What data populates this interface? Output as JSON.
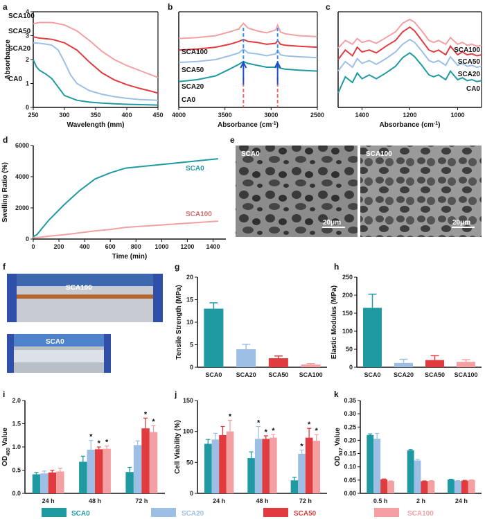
{
  "colors": {
    "CA0": "#1f9aa3",
    "SCA0": "#1f9aa3",
    "SCA20": "#9dbfe6",
    "SCA50": "#e03b3f",
    "SCA100": "#f4a0a3",
    "black": "#111111"
  },
  "legend": {
    "items": [
      "SCA0",
      "SCA20",
      "SCA50",
      "SCA100"
    ]
  },
  "chart_data": [
    {
      "id": "a",
      "panel": "a",
      "type": "line",
      "xlabel": "Wavelength (mm)",
      "ylabel": "Absorbance",
      "xlim": [
        250,
        450
      ],
      "ylim": [
        0,
        4
      ],
      "xticks": [
        250,
        300,
        350,
        400,
        450
      ],
      "yticks": [
        0,
        1,
        2,
        3,
        4
      ],
      "series": [
        {
          "name": "SCA100",
          "color": "#f4a0a3",
          "x": [
            250,
            260,
            270,
            280,
            300,
            320,
            340,
            360,
            380,
            400,
            420,
            440,
            450
          ],
          "y": [
            3.5,
            3.55,
            3.55,
            3.55,
            3.45,
            3.2,
            2.8,
            2.35,
            2.0,
            1.75,
            1.55,
            1.35,
            1.25
          ]
        },
        {
          "name": "SCA50",
          "color": "#e03b3f",
          "x": [
            250,
            260,
            280,
            300,
            320,
            340,
            360,
            380,
            400,
            420,
            440,
            450
          ],
          "y": [
            2.95,
            2.9,
            2.85,
            2.7,
            2.4,
            1.9,
            1.45,
            1.15,
            0.95,
            0.8,
            0.67,
            0.6
          ]
        },
        {
          "name": "SCA20",
          "color": "#9dbfe6",
          "x": [
            250,
            260,
            270,
            280,
            290,
            300,
            310,
            320,
            340,
            360,
            380,
            400,
            420,
            450
          ],
          "y": [
            2.7,
            2.68,
            2.65,
            2.6,
            2.4,
            1.9,
            1.35,
            1.0,
            0.7,
            0.55,
            0.45,
            0.38,
            0.33,
            0.3
          ]
        },
        {
          "name": "CA0",
          "color": "#1f9aa3",
          "x": [
            250,
            255,
            260,
            270,
            280,
            290,
            300,
            320,
            340,
            360,
            380,
            400,
            450
          ],
          "y": [
            2.0,
            1.7,
            1.55,
            1.4,
            1.2,
            0.85,
            0.5,
            0.3,
            0.22,
            0.18,
            0.15,
            0.13,
            0.1
          ]
        }
      ]
    },
    {
      "id": "b",
      "panel": "b",
      "type": "line",
      "xlabel": "Absorbance (cm",
      "xlabel_sup": "-1",
      "xlabel_tail": ")",
      "xlim": [
        4000,
        2500
      ],
      "ylim": [
        0,
        10
      ],
      "xticks": [
        4000,
        3500,
        3000,
        2500
      ],
      "series": [
        {
          "name": "SCA100",
          "color": "#f4a0a3",
          "x": [
            4000,
            3800,
            3600,
            3450,
            3350,
            3300,
            3250,
            3150,
            3050,
            2950,
            2930,
            2900,
            2850,
            2700,
            2500
          ],
          "y": [
            7.2,
            7.3,
            7.5,
            7.9,
            8.2,
            8.8,
            8.3,
            8.0,
            7.8,
            8.1,
            8.6,
            7.9,
            7.7,
            7.5,
            7.4
          ]
        },
        {
          "name": "SCA50",
          "color": "#e03b3f",
          "x": [
            4000,
            3800,
            3600,
            3450,
            3350,
            3300,
            3250,
            3150,
            3050,
            2950,
            2930,
            2900,
            2850,
            2700,
            2500
          ],
          "y": [
            6.0,
            6.1,
            6.3,
            6.6,
            6.9,
            7.1,
            6.9,
            6.8,
            6.6,
            6.7,
            7.0,
            6.6,
            6.5,
            6.4,
            6.3
          ]
        },
        {
          "name": "SCA20",
          "color": "#9dbfe6",
          "x": [
            4000,
            3800,
            3600,
            3450,
            3350,
            3300,
            3250,
            3150,
            3050,
            2950,
            2930,
            2900,
            2850,
            2700,
            2500
          ],
          "y": [
            4.7,
            4.8,
            5.0,
            5.4,
            5.7,
            6.1,
            5.7,
            5.6,
            5.4,
            5.6,
            6.0,
            5.5,
            5.4,
            5.3,
            5.2
          ]
        },
        {
          "name": "SCA0",
          "color": "#1f9aa3",
          "x": [
            4000,
            3800,
            3600,
            3450,
            3350,
            3300,
            3250,
            3150,
            3050,
            2950,
            2930,
            2900,
            2850,
            2700,
            2500
          ],
          "y": [
            2.7,
            2.9,
            3.3,
            4.0,
            4.5,
            4.8,
            4.6,
            4.4,
            4.2,
            4.2,
            4.3,
            4.1,
            4.0,
            3.9,
            3.8
          ]
        }
      ],
      "labels": [
        "SCA100",
        "SCA50",
        "SCA20",
        "CA0"
      ]
    },
    {
      "id": "c",
      "panel": "c",
      "type": "line",
      "xlabel": "Absorbance (cm",
      "xlabel_sup": "-1",
      "xlabel_tail": ")",
      "xlim": [
        1500,
        900
      ],
      "ylim": [
        0,
        10
      ],
      "xticks": [
        1400,
        1200,
        1000
      ],
      "series": [
        {
          "name": "SCA100",
          "color": "#f4a0a3",
          "x": [
            1500,
            1470,
            1440,
            1420,
            1400,
            1370,
            1340,
            1300,
            1260,
            1230,
            1200,
            1180,
            1150,
            1120,
            1100,
            1080,
            1050,
            1030,
            1000,
            980,
            960,
            940,
            920,
            900
          ],
          "y": [
            6.2,
            7.0,
            6.6,
            7.2,
            6.8,
            7.0,
            6.7,
            7.3,
            7.9,
            8.8,
            9.2,
            8.9,
            8.0,
            7.0,
            6.8,
            7.0,
            6.6,
            7.3,
            6.6,
            6.8,
            6.5,
            6.6,
            6.4,
            6.5
          ]
        },
        {
          "name": "SCA50",
          "color": "#e03b3f",
          "x": [
            1500,
            1470,
            1440,
            1420,
            1400,
            1370,
            1340,
            1300,
            1260,
            1230,
            1200,
            1180,
            1150,
            1120,
            1100,
            1080,
            1050,
            1030,
            1000,
            980,
            960,
            940,
            920,
            900
          ],
          "y": [
            5.0,
            6.0,
            5.4,
            6.3,
            5.8,
            6.0,
            5.7,
            6.4,
            7.0,
            7.9,
            8.4,
            8.0,
            7.0,
            6.0,
            5.8,
            6.0,
            5.5,
            6.4,
            5.5,
            5.8,
            5.5,
            5.6,
            5.4,
            5.5
          ]
        },
        {
          "name": "SCA20",
          "color": "#9dbfe6",
          "x": [
            1500,
            1470,
            1440,
            1420,
            1400,
            1370,
            1340,
            1300,
            1260,
            1230,
            1200,
            1180,
            1150,
            1120,
            1100,
            1080,
            1050,
            1030,
            1000,
            980,
            960,
            940,
            920,
            900
          ],
          "y": [
            3.8,
            4.8,
            4.2,
            5.1,
            4.6,
            4.9,
            4.5,
            5.1,
            5.8,
            6.6,
            7.1,
            6.8,
            5.9,
            4.9,
            4.7,
            4.9,
            4.4,
            5.3,
            4.4,
            4.6,
            4.3,
            4.4,
            4.2,
            4.3
          ]
        },
        {
          "name": "CA0",
          "color": "#1f9aa3",
          "x": [
            1500,
            1470,
            1440,
            1420,
            1400,
            1370,
            1340,
            1300,
            1260,
            1230,
            1200,
            1180,
            1150,
            1120,
            1100,
            1080,
            1050,
            1030,
            1000,
            980,
            960,
            940,
            920,
            900
          ],
          "y": [
            1.5,
            3.2,
            2.6,
            3.6,
            3.0,
            3.4,
            3.0,
            3.6,
            4.3,
            5.2,
            5.7,
            5.3,
            4.4,
            3.4,
            3.2,
            3.4,
            2.9,
            3.8,
            2.9,
            3.1,
            2.8,
            2.9,
            2.7,
            2.8
          ]
        }
      ],
      "labels": [
        "SCA100",
        "SCA50",
        "SCA20",
        "CA0"
      ]
    },
    {
      "id": "d",
      "panel": "d",
      "type": "line",
      "xlabel": "Time (min)",
      "ylabel": "Swelling Ratio (%)",
      "xlim": [
        0,
        1500
      ],
      "ylim": [
        0,
        6000
      ],
      "xticks": [
        0,
        200,
        400,
        600,
        800,
        1000,
        1200,
        1400
      ],
      "yticks": [
        0,
        2000,
        4000,
        6000
      ],
      "series": [
        {
          "name": "SCA0",
          "color": "#1f9aa3",
          "x": [
            0,
            30,
            60,
            120,
            240,
            360,
            480,
            600,
            720,
            900,
            1080,
            1260,
            1440
          ],
          "y": [
            150,
            300,
            600,
            1200,
            2200,
            3100,
            3850,
            4250,
            4550,
            4700,
            4850,
            5000,
            5150
          ]
        },
        {
          "name": "SCA100",
          "color": "#f4a0a3",
          "x": [
            0,
            60,
            120,
            240,
            360,
            480,
            600,
            720,
            900,
            1080,
            1260,
            1440
          ],
          "y": [
            80,
            120,
            180,
            280,
            400,
            520,
            620,
            750,
            850,
            950,
            1050,
            1150
          ]
        }
      ]
    },
    {
      "id": "g",
      "panel": "g",
      "type": "bar",
      "ylabel": "Tensile Strength (MPa)",
      "ylim": [
        0,
        20
      ],
      "yticks": [
        0,
        5,
        10,
        15,
        20
      ],
      "categories": [
        "SCA0",
        "SCA20",
        "SCA50",
        "SCA100"
      ],
      "values": [
        13.0,
        4.0,
        2.0,
        0.6
      ],
      "errors": [
        1.3,
        1.1,
        0.5,
        0.2
      ]
    },
    {
      "id": "h",
      "panel": "h",
      "type": "bar",
      "ylabel": "Elastic Modulus (MPa)",
      "ylim": [
        0,
        250
      ],
      "yticks": [
        0,
        50,
        100,
        150,
        200,
        250
      ],
      "categories": [
        "SCA0",
        "SCA20",
        "SCA50",
        "SCA100"
      ],
      "values": [
        165,
        12,
        20,
        15
      ],
      "errors": [
        38,
        10,
        12,
        6
      ]
    },
    {
      "id": "i",
      "panel": "i",
      "type": "bar",
      "ylabel_pre": "OD",
      "ylabel_sub": "450",
      "ylabel_post": " Value",
      "ylim": [
        0,
        2.0
      ],
      "yticks": [
        0.0,
        0.5,
        1.0,
        1.5,
        2.0
      ],
      "categories": [
        "24 h",
        "48 h",
        "72 h"
      ],
      "series": [
        {
          "name": "SCA0",
          "values": [
            0.41,
            0.68,
            0.46
          ],
          "errors": [
            0.04,
            0.12,
            0.1
          ],
          "stars": [
            false,
            false,
            false
          ]
        },
        {
          "name": "SCA20",
          "values": [
            0.43,
            0.94,
            1.04
          ],
          "errors": [
            0.05,
            0.2,
            0.09
          ],
          "stars": [
            false,
            true,
            false
          ]
        },
        {
          "name": "SCA50",
          "values": [
            0.45,
            0.95,
            1.4
          ],
          "errors": [
            0.05,
            0.05,
            0.22
          ],
          "stars": [
            false,
            true,
            true
          ]
        },
        {
          "name": "SCA100",
          "values": [
            0.47,
            0.96,
            1.32
          ],
          "errors": [
            0.07,
            0.06,
            0.14
          ],
          "stars": [
            false,
            true,
            true
          ]
        }
      ]
    },
    {
      "id": "j",
      "panel": "j",
      "type": "bar",
      "ylabel": "Cell Viability (%)",
      "ylim": [
        0,
        150
      ],
      "yticks": [
        0,
        50,
        100,
        150
      ],
      "categories": [
        "24 h",
        "48 h",
        "72 h"
      ],
      "series": [
        {
          "name": "SCA0",
          "values": [
            80,
            57,
            21
          ],
          "errors": [
            7,
            10,
            5
          ],
          "stars": [
            false,
            false,
            false
          ]
        },
        {
          "name": "SCA20",
          "values": [
            87,
            88,
            64
          ],
          "errors": [
            10,
            20,
            6
          ],
          "stars": [
            false,
            true,
            true
          ]
        },
        {
          "name": "SCA50",
          "values": [
            94,
            88,
            90
          ],
          "errors": [
            14,
            5,
            15
          ],
          "stars": [
            false,
            true,
            true
          ]
        },
        {
          "name": "SCA100",
          "values": [
            100,
            90,
            85
          ],
          "errors": [
            18,
            5,
            10
          ],
          "stars": [
            true,
            true,
            true
          ]
        }
      ]
    },
    {
      "id": "k",
      "panel": "k",
      "type": "bar",
      "ylabel_pre": "OD",
      "ylabel_sub": "517",
      "ylabel_post": " Value",
      "ylim": [
        0,
        0.35
      ],
      "yticks": [
        0.0,
        0.05,
        0.1,
        0.15,
        0.2,
        0.25,
        0.3,
        0.35
      ],
      "categories": [
        "0.5 h",
        "2 h",
        "24 h"
      ],
      "series": [
        {
          "name": "SCA0",
          "values": [
            0.22,
            0.162,
            0.052
          ],
          "errors": [
            0.004,
            0.003,
            0.001
          ]
        },
        {
          "name": "SCA20",
          "values": [
            0.206,
            0.124,
            0.047
          ],
          "errors": [
            0.02,
            0.004,
            0.001
          ]
        },
        {
          "name": "SCA50",
          "values": [
            0.053,
            0.046,
            0.048
          ],
          "errors": [
            0.001,
            0.001,
            0.001
          ]
        },
        {
          "name": "SCA100",
          "values": [
            0.046,
            0.047,
            0.05
          ],
          "errors": [
            0.001,
            0.001,
            0.001
          ]
        }
      ]
    }
  ],
  "images": {
    "e_left_label": "SCA0",
    "e_right_label": "SCA100",
    "scale": "20μm",
    "f_top_label": "SCA100",
    "f_bottom_label": "SCA0"
  },
  "panel_letters": {
    "a": "a",
    "b": "b",
    "c": "c",
    "d": "d",
    "e": "e",
    "f": "f",
    "g": "g",
    "h": "h",
    "i": "i",
    "j": "j",
    "k": "k"
  }
}
